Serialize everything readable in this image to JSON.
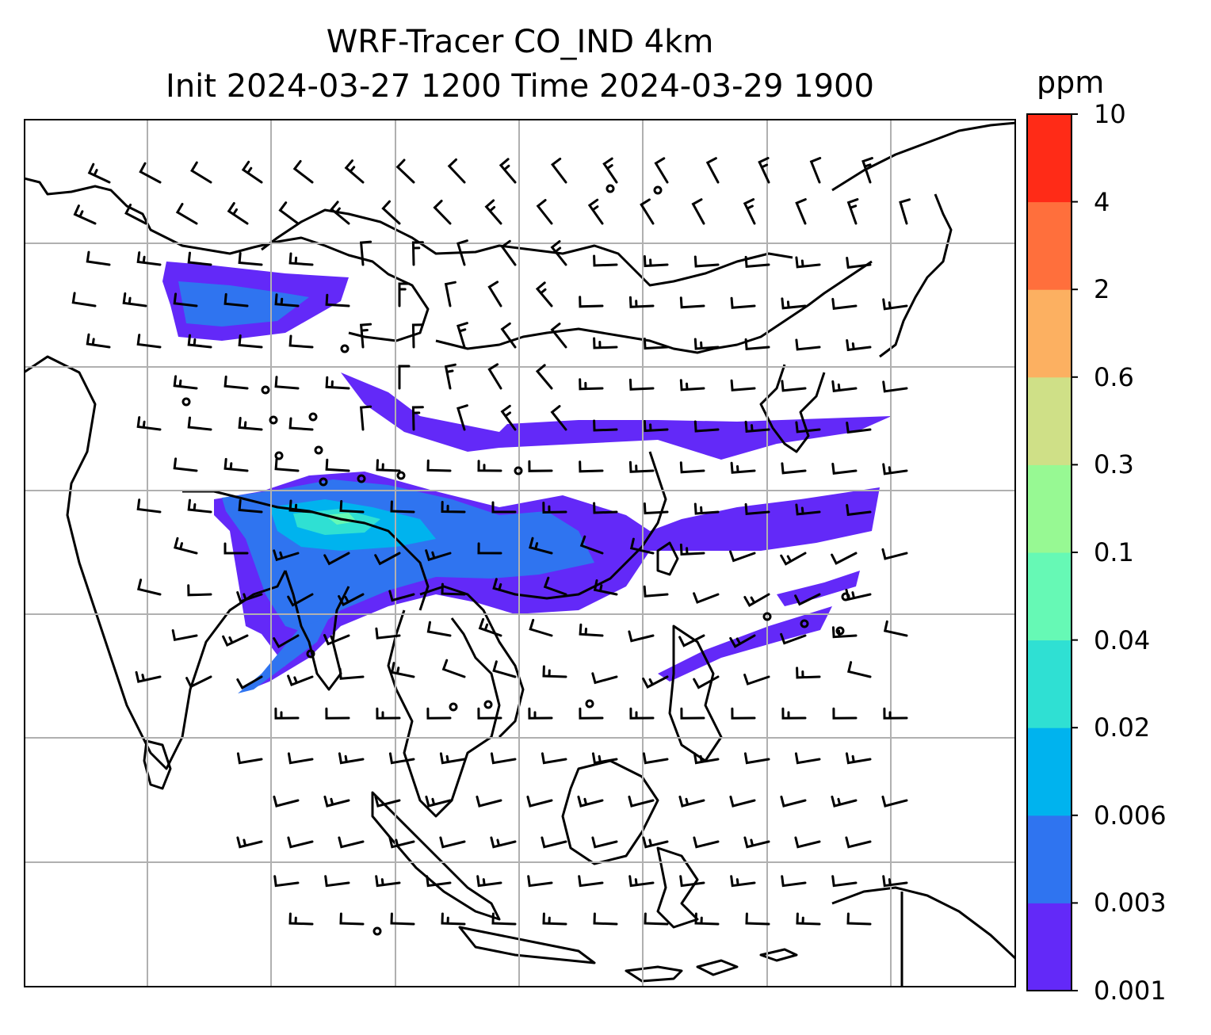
{
  "title": {
    "line1": "WRF-Tracer CO_IND 4km",
    "line2": "Init 2024-03-27 1200 Time 2024-03-29 1900"
  },
  "colorbar": {
    "unit": "ppm",
    "levels": [
      "0.001",
      "0.003",
      "0.006",
      "0.02",
      "0.04",
      "0.1",
      "0.3",
      "0.6",
      "2",
      "4",
      "10"
    ],
    "colors": [
      "#6329f8",
      "#2f74f0",
      "#00b3ee",
      "#2fe0d3",
      "#66f9b5",
      "#97f993",
      "#cfe087",
      "#fcb061",
      "#ff6f3c",
      "#ff2b17"
    ]
  },
  "map": {
    "gridlines": "on",
    "gridline_color": "#b0b0b0",
    "coastline_color": "#000000",
    "features": [
      "coastlines",
      "country-borders",
      "wind-barbs",
      "tracer-plume"
    ]
  }
}
